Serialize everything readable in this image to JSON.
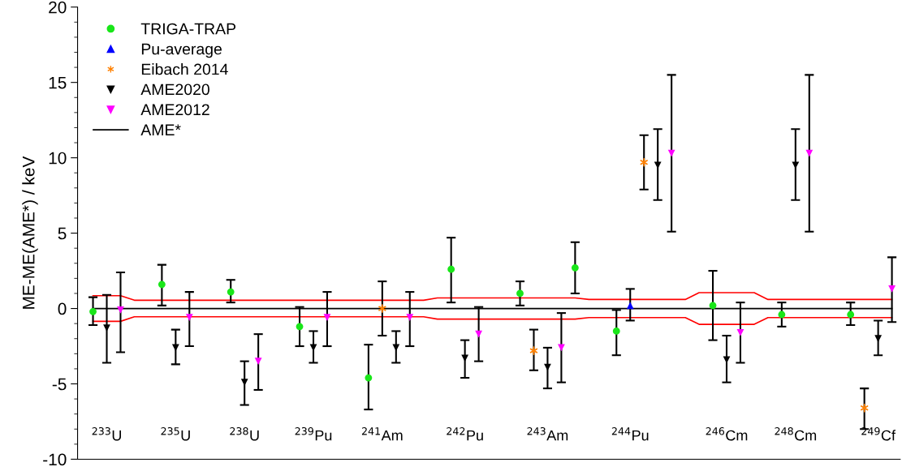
{
  "chart_data": {
    "type": "scatter",
    "ylabel": "ME-ME(AME*) / keV",
    "ylim": [
      -10,
      20
    ],
    "yticks": [
      -10,
      -5,
      0,
      5,
      10,
      15,
      20
    ],
    "grid": false,
    "legend": "top left",
    "categories": [
      null,
      "$^{233}$U",
      null,
      null,
      null,
      null,
      "$^{235}$U",
      null,
      null,
      null,
      null,
      "$^{238}$U",
      null,
      null,
      null,
      null,
      "$^{239}$Pu",
      null,
      null,
      null,
      null,
      "$^{241}$Am",
      null,
      null,
      null,
      null,
      null,
      "$^{242}$Pu",
      null,
      null,
      null,
      null,
      null,
      "$^{243}$Am",
      null,
      null,
      null,
      null,
      null,
      "$^{244}$Pu",
      null,
      null,
      null,
      null,
      null,
      null,
      "$^{246}$Cm",
      null,
      null,
      null,
      null,
      "$^{248}$Cm",
      null,
      null,
      null,
      null,
      null,
      "$^{249}$Cf",
      null
    ],
    "series": [
      {
        "name": "TRIGA-TRAP",
        "color": "#19e619",
        "marker": "circle",
        "values": [
          -0.2,
          null,
          null,
          null,
          null,
          1.6,
          null,
          null,
          null,
          null,
          1.1,
          null,
          null,
          null,
          null,
          -1.2,
          null,
          null,
          null,
          null,
          -4.6,
          null,
          null,
          null,
          null,
          null,
          2.6,
          null,
          null,
          null,
          null,
          1.0,
          null,
          null,
          null,
          2.7,
          null,
          null,
          -1.5,
          null,
          null,
          null,
          null,
          null,
          null,
          0.2,
          null,
          null,
          null,
          null,
          -0.4,
          null,
          null,
          null,
          null,
          -0.4,
          null,
          null,
          null
        ],
        "errors": [
          [
            -1.1,
            0.75
          ],
          null,
          null,
          null,
          null,
          [
            0.2,
            2.9
          ],
          null,
          null,
          null,
          null,
          [
            0.4,
            1.9
          ],
          null,
          null,
          null,
          null,
          [
            -2.5,
            0.1
          ],
          null,
          null,
          null,
          null,
          [
            -6.7,
            -2.4
          ],
          null,
          null,
          null,
          null,
          null,
          [
            0.4,
            4.7
          ],
          null,
          null,
          null,
          null,
          [
            0.2,
            1.8
          ],
          null,
          null,
          null,
          [
            1.0,
            4.4
          ],
          null,
          null,
          [
            -3.1,
            -0.1
          ],
          null,
          null,
          null,
          null,
          null,
          null,
          [
            -2.1,
            2.5
          ],
          null,
          null,
          null,
          null,
          [
            -1.2,
            0.4
          ],
          null,
          null,
          null,
          null,
          [
            -1.1,
            0.4
          ],
          null,
          null,
          null
        ]
      },
      {
        "name": "Pu-average",
        "color": "#0000ff",
        "marker": "triangle",
        "values": [
          null,
          null,
          null,
          null,
          null,
          null,
          null,
          null,
          null,
          null,
          null,
          null,
          null,
          null,
          null,
          null,
          null,
          null,
          null,
          null,
          null,
          null,
          null,
          null,
          null,
          null,
          null,
          null,
          null,
          null,
          null,
          null,
          null,
          null,
          null,
          null,
          null,
          null,
          null,
          0.2,
          null,
          null,
          null,
          null,
          null,
          null,
          null,
          null,
          null,
          null,
          null,
          null,
          null,
          null,
          null,
          null,
          null,
          null,
          null
        ],
        "errors": [
          null,
          null,
          null,
          null,
          null,
          null,
          null,
          null,
          null,
          null,
          null,
          null,
          null,
          null,
          null,
          null,
          null,
          null,
          null,
          null,
          null,
          null,
          null,
          null,
          null,
          null,
          null,
          null,
          null,
          null,
          null,
          null,
          null,
          null,
          null,
          null,
          null,
          null,
          null,
          [
            -0.8,
            1.3
          ],
          null,
          null,
          null,
          null,
          null,
          null,
          null,
          null,
          null,
          null,
          null,
          null,
          null,
          null,
          null,
          null,
          null,
          null,
          null
        ]
      },
      {
        "name": "Eibach 2014",
        "color": "#ff8000",
        "marker": "cross",
        "values": [
          null,
          null,
          null,
          null,
          null,
          null,
          null,
          null,
          null,
          null,
          null,
          null,
          null,
          null,
          null,
          null,
          null,
          null,
          null,
          null,
          null,
          0.0,
          null,
          null,
          null,
          null,
          null,
          null,
          null,
          null,
          null,
          null,
          -2.8,
          null,
          null,
          null,
          null,
          null,
          null,
          null,
          9.7,
          null,
          null,
          null,
          null,
          null,
          null,
          null,
          null,
          null,
          null,
          null,
          null,
          null,
          null,
          null,
          -6.6,
          null,
          null
        ],
        "errors": [
          null,
          null,
          null,
          null,
          null,
          null,
          null,
          null,
          null,
          null,
          null,
          null,
          null,
          null,
          null,
          null,
          null,
          null,
          null,
          null,
          null,
          [
            -1.8,
            1.8
          ],
          null,
          null,
          null,
          null,
          null,
          null,
          null,
          null,
          null,
          null,
          [
            -4.1,
            -1.4
          ],
          null,
          null,
          null,
          null,
          null,
          null,
          null,
          [
            7.9,
            11.5
          ],
          null,
          null,
          null,
          null,
          null,
          null,
          null,
          null,
          null,
          null,
          null,
          null,
          null,
          null,
          null,
          [
            -8.0,
            -5.3
          ],
          null,
          null
        ]
      },
      {
        "name": "AME2020",
        "color": "#000000",
        "marker": "triangle_down",
        "values": [
          null,
          -1.3,
          null,
          null,
          null,
          null,
          -2.6,
          null,
          null,
          null,
          null,
          -4.9,
          null,
          null,
          null,
          null,
          -2.6,
          null,
          null,
          null,
          null,
          null,
          -2.6,
          null,
          null,
          null,
          null,
          -3.3,
          null,
          null,
          null,
          null,
          null,
          -3.9,
          null,
          null,
          null,
          null,
          null,
          null,
          null,
          9.5,
          null,
          null,
          null,
          null,
          -3.4,
          null,
          null,
          null,
          null,
          9.5,
          null,
          null,
          null,
          null,
          null,
          -2.0,
          null
        ],
        "errors": [
          null,
          [
            -3.6,
            0.9
          ],
          null,
          null,
          null,
          null,
          [
            -3.7,
            -1.4
          ],
          null,
          null,
          null,
          null,
          [
            -6.4,
            -3.5
          ],
          null,
          null,
          null,
          null,
          [
            -3.6,
            -1.5
          ],
          null,
          null,
          null,
          null,
          null,
          [
            -3.6,
            -1.5
          ],
          null,
          null,
          null,
          null,
          [
            -4.6,
            -2.1
          ],
          null,
          null,
          null,
          null,
          null,
          [
            -5.3,
            -2.6
          ],
          null,
          null,
          null,
          null,
          null,
          null,
          null,
          [
            7.2,
            11.9
          ],
          null,
          null,
          null,
          null,
          [
            -4.9,
            -1.8
          ],
          null,
          null,
          null,
          null,
          [
            7.2,
            11.9
          ],
          null,
          null,
          null,
          null,
          null,
          [
            -3.1,
            -0.8
          ],
          null
        ]
      },
      {
        "name": "AME2012",
        "color": "#ff00ff",
        "marker": "triangle_down",
        "values": [
          null,
          null,
          -0.1,
          null,
          null,
          null,
          null,
          -0.6,
          null,
          null,
          null,
          null,
          -3.5,
          null,
          null,
          null,
          null,
          -0.6,
          null,
          null,
          null,
          null,
          null,
          -0.6,
          null,
          null,
          null,
          null,
          -1.7,
          null,
          null,
          null,
          null,
          null,
          -2.6,
          null,
          null,
          null,
          null,
          null,
          null,
          null,
          10.3,
          null,
          null,
          null,
          null,
          -1.6,
          null,
          null,
          null,
          null,
          10.3,
          null,
          null,
          null,
          null,
          null,
          1.3
        ],
        "errors": [
          null,
          null,
          [
            -2.9,
            2.4
          ],
          null,
          null,
          null,
          null,
          [
            -2.5,
            1.1
          ],
          null,
          null,
          null,
          null,
          [
            -5.4,
            -1.7
          ],
          null,
          null,
          null,
          null,
          [
            -2.5,
            1.1
          ],
          null,
          null,
          null,
          null,
          null,
          [
            -2.5,
            1.1
          ],
          null,
          null,
          null,
          null,
          [
            -3.5,
            0.1
          ],
          null,
          null,
          null,
          null,
          null,
          [
            -4.9,
            -0.3
          ],
          null,
          null,
          null,
          null,
          null,
          null,
          null,
          [
            5.1,
            15.5
          ],
          null,
          null,
          null,
          null,
          [
            -3.6,
            0.4
          ],
          null,
          null,
          null,
          null,
          [
            5.1,
            15.5
          ],
          null,
          null,
          null,
          null,
          null,
          [
            -0.9,
            3.4
          ]
        ]
      },
      {
        "name": "AME*",
        "color": "#000000",
        "type": "line",
        "marker": "none",
        "values": [
          0,
          0,
          0,
          0,
          0,
          0,
          0,
          0,
          0,
          0,
          0,
          0,
          0,
          0,
          0,
          0,
          0,
          0,
          0,
          0,
          0,
          0,
          0,
          0,
          0,
          0,
          0,
          0,
          0,
          0,
          0,
          0,
          0,
          0,
          0,
          0,
          0,
          0,
          0,
          0,
          0,
          0,
          0,
          0,
          0,
          0,
          0,
          0,
          0,
          0,
          0,
          0,
          0,
          0,
          0,
          0,
          0,
          0,
          0
        ]
      },
      {
        "color": "#ff0000",
        "type": "line",
        "marker": "none",
        "values": [
          0.85,
          0.85,
          0.85,
          0.55,
          0.55,
          0.55,
          0.55,
          0.55,
          0.55,
          0.55,
          0.55,
          0.55,
          0.55,
          0.55,
          0.55,
          0.55,
          0.55,
          0.55,
          0.55,
          0.55,
          0.55,
          0.55,
          0.55,
          0.55,
          0.55,
          0.7,
          0.7,
          0.7,
          0.7,
          0.7,
          0.7,
          0.7,
          0.7,
          0.7,
          0.7,
          0.7,
          0.6,
          0.6,
          0.6,
          0.6,
          0.6,
          0.6,
          0.6,
          0.6,
          1.05,
          1.05,
          1.05,
          1.05,
          1.05,
          0.6,
          0.6,
          0.6,
          0.6,
          0.6,
          0.6,
          0.6,
          0.6,
          0.6,
          0.6
        ]
      },
      {
        "color": "#ff0000",
        "type": "line",
        "marker": "none",
        "values": [
          -0.85,
          -0.85,
          -0.85,
          -0.55,
          -0.55,
          -0.55,
          -0.55,
          -0.55,
          -0.55,
          -0.55,
          -0.55,
          -0.55,
          -0.55,
          -0.55,
          -0.55,
          -0.55,
          -0.55,
          -0.55,
          -0.55,
          -0.55,
          -0.55,
          -0.55,
          -0.55,
          -0.55,
          -0.55,
          -0.7,
          -0.7,
          -0.7,
          -0.7,
          -0.7,
          -0.7,
          -0.7,
          -0.7,
          -0.7,
          -0.7,
          -0.7,
          -0.6,
          -0.6,
          -0.6,
          -0.6,
          -0.6,
          -0.6,
          -0.6,
          -0.6,
          -1.05,
          -1.05,
          -1.05,
          -1.05,
          -1.05,
          -0.6,
          -0.6,
          -0.6,
          -0.6,
          -0.6,
          -0.6,
          -0.6,
          -0.6,
          -0.6,
          -0.6
        ]
      }
    ]
  }
}
